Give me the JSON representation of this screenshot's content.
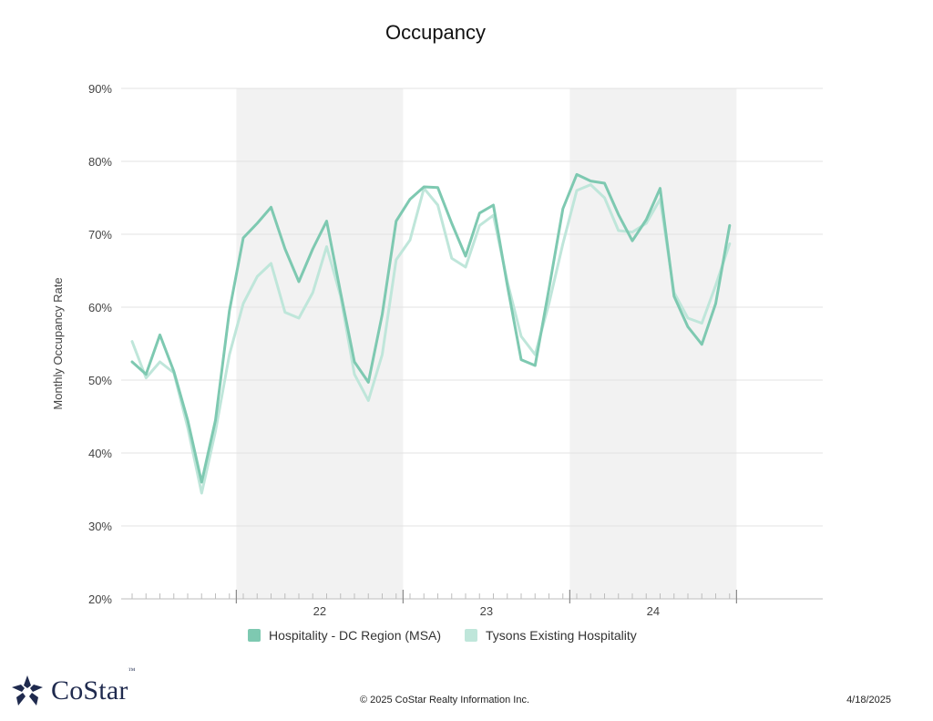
{
  "chart_data": {
    "type": "line",
    "title": "Occupancy",
    "ylabel": "Monthly Occupancy Rate",
    "ylim": [
      20,
      90
    ],
    "yticks": [
      "20%",
      "30%",
      "40%",
      "50%",
      "60%",
      "70%",
      "80%",
      "90%"
    ],
    "ytick_values": [
      20,
      30,
      40,
      50,
      60,
      70,
      80,
      90
    ],
    "x_start": "2021-05",
    "year_labels": [
      "22",
      "23",
      "24"
    ],
    "shaded_years": [
      "22",
      "24"
    ],
    "grid": true,
    "legend_placement": "bottom",
    "series": [
      {
        "name": "Hospitality - DC Region (MSA)",
        "color": "#7ec9b1",
        "values": [
          52.5,
          50.8,
          56.2,
          51.2,
          44.5,
          36.0,
          44.5,
          59.5,
          69.5,
          71.5,
          73.7,
          68.0,
          63.5,
          68.0,
          71.8,
          62.0,
          52.5,
          49.7,
          59.0,
          71.8,
          74.8,
          76.5,
          76.4,
          71.5,
          67.0,
          72.9,
          74.0,
          63.0,
          52.8,
          52.0,
          62.5,
          73.5,
          78.2,
          77.3,
          77.0,
          72.7,
          69.1,
          72.0,
          76.3,
          61.5,
          57.3,
          54.9,
          60.5,
          71.2
        ]
      },
      {
        "name": "Tysons Existing Hospitality",
        "color": "#bfe6da",
        "values": [
          55.3,
          50.3,
          52.5,
          51.0,
          43.5,
          34.5,
          43.0,
          53.5,
          60.5,
          64.2,
          66.0,
          59.3,
          58.5,
          62.0,
          68.3,
          61.5,
          50.8,
          47.2,
          53.5,
          66.5,
          69.2,
          76.3,
          74.0,
          66.7,
          65.5,
          71.2,
          72.6,
          63.5,
          56.0,
          53.5,
          60.5,
          68.7,
          76.0,
          76.8,
          75.0,
          70.5,
          70.3,
          71.5,
          74.8,
          62.0,
          58.5,
          57.8,
          63.0,
          68.7
        ]
      }
    ]
  },
  "footer": {
    "copyright": "© 2025 CoStar Realty Information Inc.",
    "date": "4/18/2025",
    "logo_text": "CoStar",
    "logo_tm": "™"
  },
  "colors": {
    "shade": "#f2f2f2",
    "grid": "#e3e3e3",
    "logo": "#1f2a4e"
  }
}
